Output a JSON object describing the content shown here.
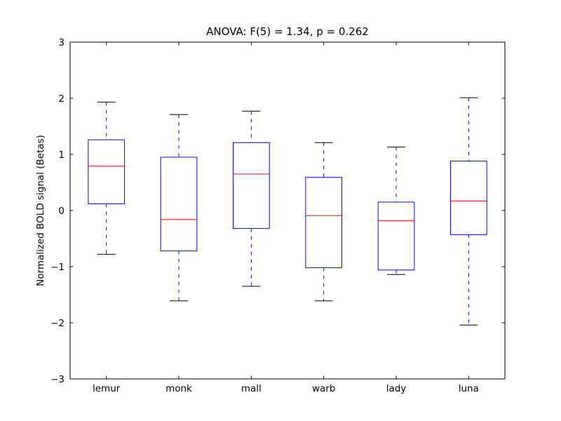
{
  "chart_data": {
    "type": "boxplot",
    "title": "ANOVA: F(5) = 1.34, p = 0.262",
    "xlabel": "",
    "ylabel": "Normalized BOLD signal (Betas)",
    "ylim": [
      -3,
      3
    ],
    "yticks": [
      -3,
      -2,
      -1,
      0,
      1,
      2,
      3
    ],
    "categories": [
      "lemur",
      "monk",
      "mall",
      "warb",
      "lady",
      "luna"
    ],
    "series": [
      {
        "name": "lemur",
        "whisker_low": -0.78,
        "q1": 0.12,
        "median": 0.79,
        "q3": 1.26,
        "whisker_high": 1.93
      },
      {
        "name": "monk",
        "whisker_low": -1.61,
        "q1": -0.72,
        "median": -0.16,
        "q3": 0.95,
        "whisker_high": 1.71
      },
      {
        "name": "mall",
        "whisker_low": -1.35,
        "q1": -0.32,
        "median": 0.65,
        "q3": 1.21,
        "whisker_high": 1.77
      },
      {
        "name": "warb",
        "whisker_low": -1.61,
        "q1": -1.02,
        "median": -0.09,
        "q3": 0.59,
        "whisker_high": 1.21
      },
      {
        "name": "lady",
        "whisker_low": -1.14,
        "q1": -1.06,
        "median": -0.18,
        "q3": 0.15,
        "whisker_high": 1.13
      },
      {
        "name": "luna",
        "whisker_low": -2.04,
        "q1": -0.43,
        "median": 0.17,
        "q3": 0.88,
        "whisker_high": 2.01
      }
    ],
    "colors": {
      "box": "#0000ff",
      "median": "#ff0000",
      "whisker": "#0000ff",
      "cap": "#000000",
      "axis": "#000000",
      "background": "#ffffff"
    },
    "grid": false,
    "legend": null
  }
}
